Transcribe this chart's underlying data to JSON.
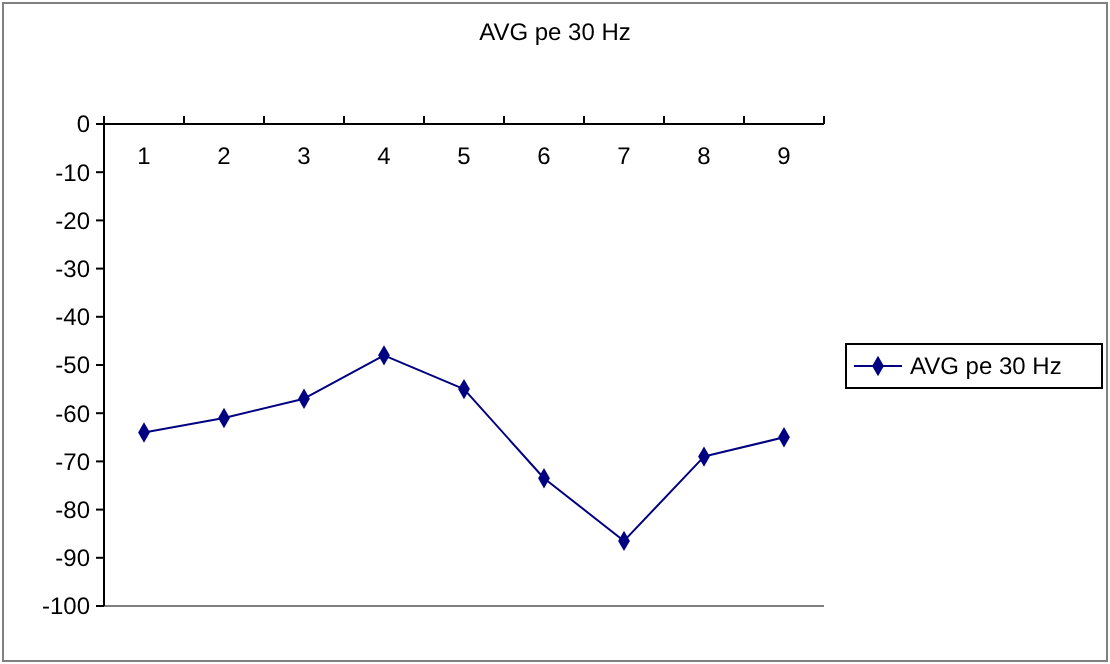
{
  "chart_data": {
    "type": "line",
    "title": "AVG pe 30 Hz",
    "categories": [
      "1",
      "2",
      "3",
      "4",
      "5",
      "6",
      "7",
      "8",
      "9"
    ],
    "series": [
      {
        "name": "AVG pe 30 Hz",
        "color": "#000080",
        "values": [
          -64,
          -61,
          -57,
          -48,
          -55,
          -73.5,
          -86.5,
          -69,
          -65
        ]
      }
    ],
    "ylim": [
      -100,
      0
    ],
    "yticks": [
      0,
      -10,
      -20,
      -30,
      -40,
      -50,
      -60,
      -70,
      -80,
      -90,
      -100
    ],
    "grid": false,
    "legend": "right",
    "marker": "diamond",
    "line_style": "solid"
  }
}
